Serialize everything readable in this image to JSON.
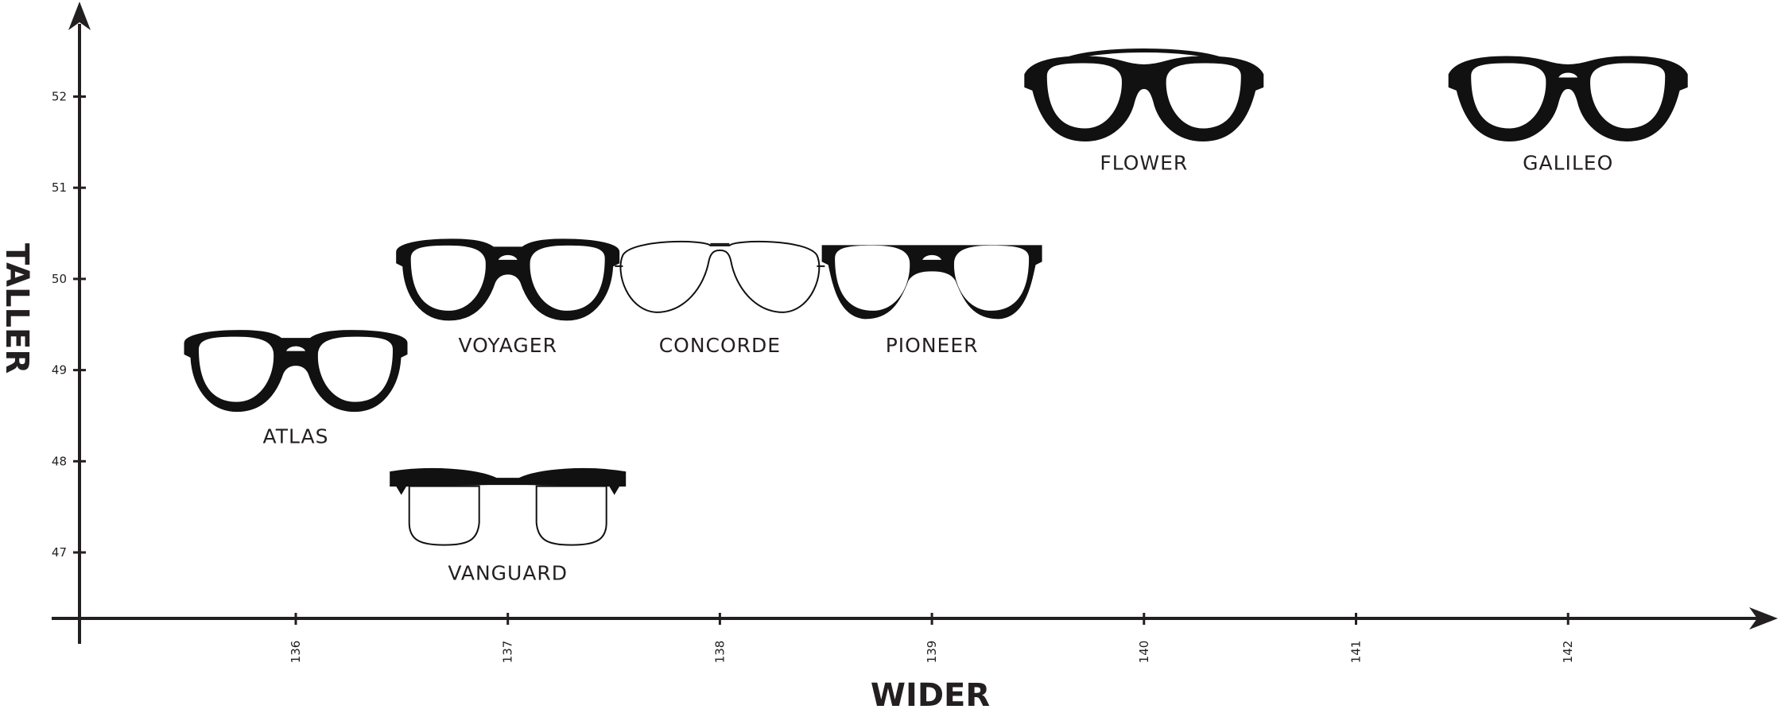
{
  "chart_data": {
    "type": "scatter",
    "title": "",
    "xlabel": "WIDER",
    "ylabel": "TALLER",
    "x_ticks": [
      136,
      137,
      138,
      139,
      140,
      141,
      142
    ],
    "y_ticks": [
      47,
      48,
      49,
      50,
      51,
      52
    ],
    "xlim": [
      135,
      143
    ],
    "ylim": [
      46.3,
      53
    ],
    "grid": false,
    "points": [
      {
        "label": "ATLAS",
        "x": 136,
        "y": 49,
        "style": "round-keyhole"
      },
      {
        "label": "VANGUARD",
        "x": 137,
        "y": 47.5,
        "style": "browline"
      },
      {
        "label": "VOYAGER",
        "x": 137,
        "y": 50,
        "style": "round-bar"
      },
      {
        "label": "CONCORDE",
        "x": 138,
        "y": 50,
        "style": "aviator"
      },
      {
        "label": "PIONEER",
        "x": 139,
        "y": 50,
        "style": "square"
      },
      {
        "label": "FLOWER",
        "x": 140,
        "y": 52,
        "style": "double-bridge"
      },
      {
        "label": "GALILEO",
        "x": 142,
        "y": 52,
        "style": "cat-eye"
      }
    ]
  },
  "colors": {
    "ink": "#231f20",
    "frame": "#111111",
    "background": "#ffffff"
  },
  "icons": {
    "y_axis_arrow": "arrow-up-icon",
    "x_axis_arrow": "arrow-right-icon",
    "item_icon": "eyeglasses-icon"
  }
}
